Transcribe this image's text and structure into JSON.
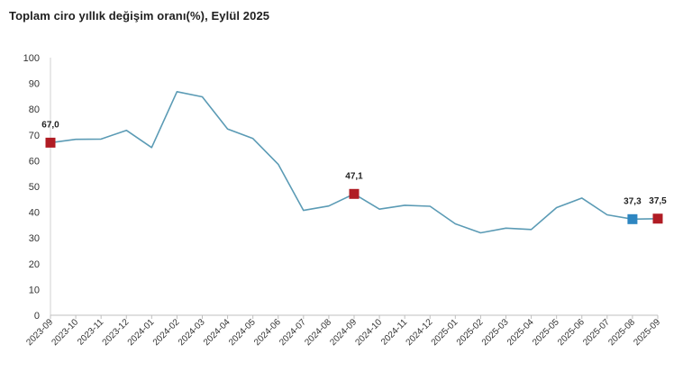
{
  "chart_data": {
    "type": "line",
    "title": "Toplam ciro yıllık değişim oranı(%), Eylül 2025",
    "xlabel": "",
    "ylabel": "",
    "ylim": [
      0,
      100
    ],
    "yticks": [
      0,
      10,
      20,
      30,
      40,
      50,
      60,
      70,
      80,
      90,
      100
    ],
    "grid": false,
    "legend": "none",
    "categories": [
      "2023-09",
      "2023-10",
      "2023-11",
      "2023-12",
      "2024-01",
      "2024-02",
      "2024-03",
      "2024-04",
      "2024-05",
      "2024-06",
      "2024-07",
      "2024-08",
      "2024-09",
      "2024-10",
      "2024-11",
      "2024-12",
      "2025-01",
      "2025-02",
      "2025-03",
      "2025-04",
      "2025-05",
      "2025-06",
      "2025-07",
      "2025-08",
      "2025-09"
    ],
    "series": [
      {
        "values": [
          67.0,
          68.3,
          68.4,
          71.8,
          65.1,
          86.8,
          84.8,
          72.3,
          68.6,
          58.6,
          40.7,
          42.4,
          47.1,
          41.2,
          42.7,
          42.3,
          35.5,
          32.0,
          33.8,
          33.3,
          41.8,
          45.5,
          39.0,
          37.3,
          37.5
        ],
        "color": "#5b9bb5"
      }
    ],
    "highlights": [
      {
        "index": 0,
        "label": "67,0",
        "color": "#b01c24"
      },
      {
        "index": 12,
        "label": "47,1",
        "color": "#b01c24"
      },
      {
        "index": 23,
        "label": "37,3",
        "color": "#2e86c1"
      },
      {
        "index": 24,
        "label": "37,5",
        "color": "#b01c24"
      }
    ]
  }
}
